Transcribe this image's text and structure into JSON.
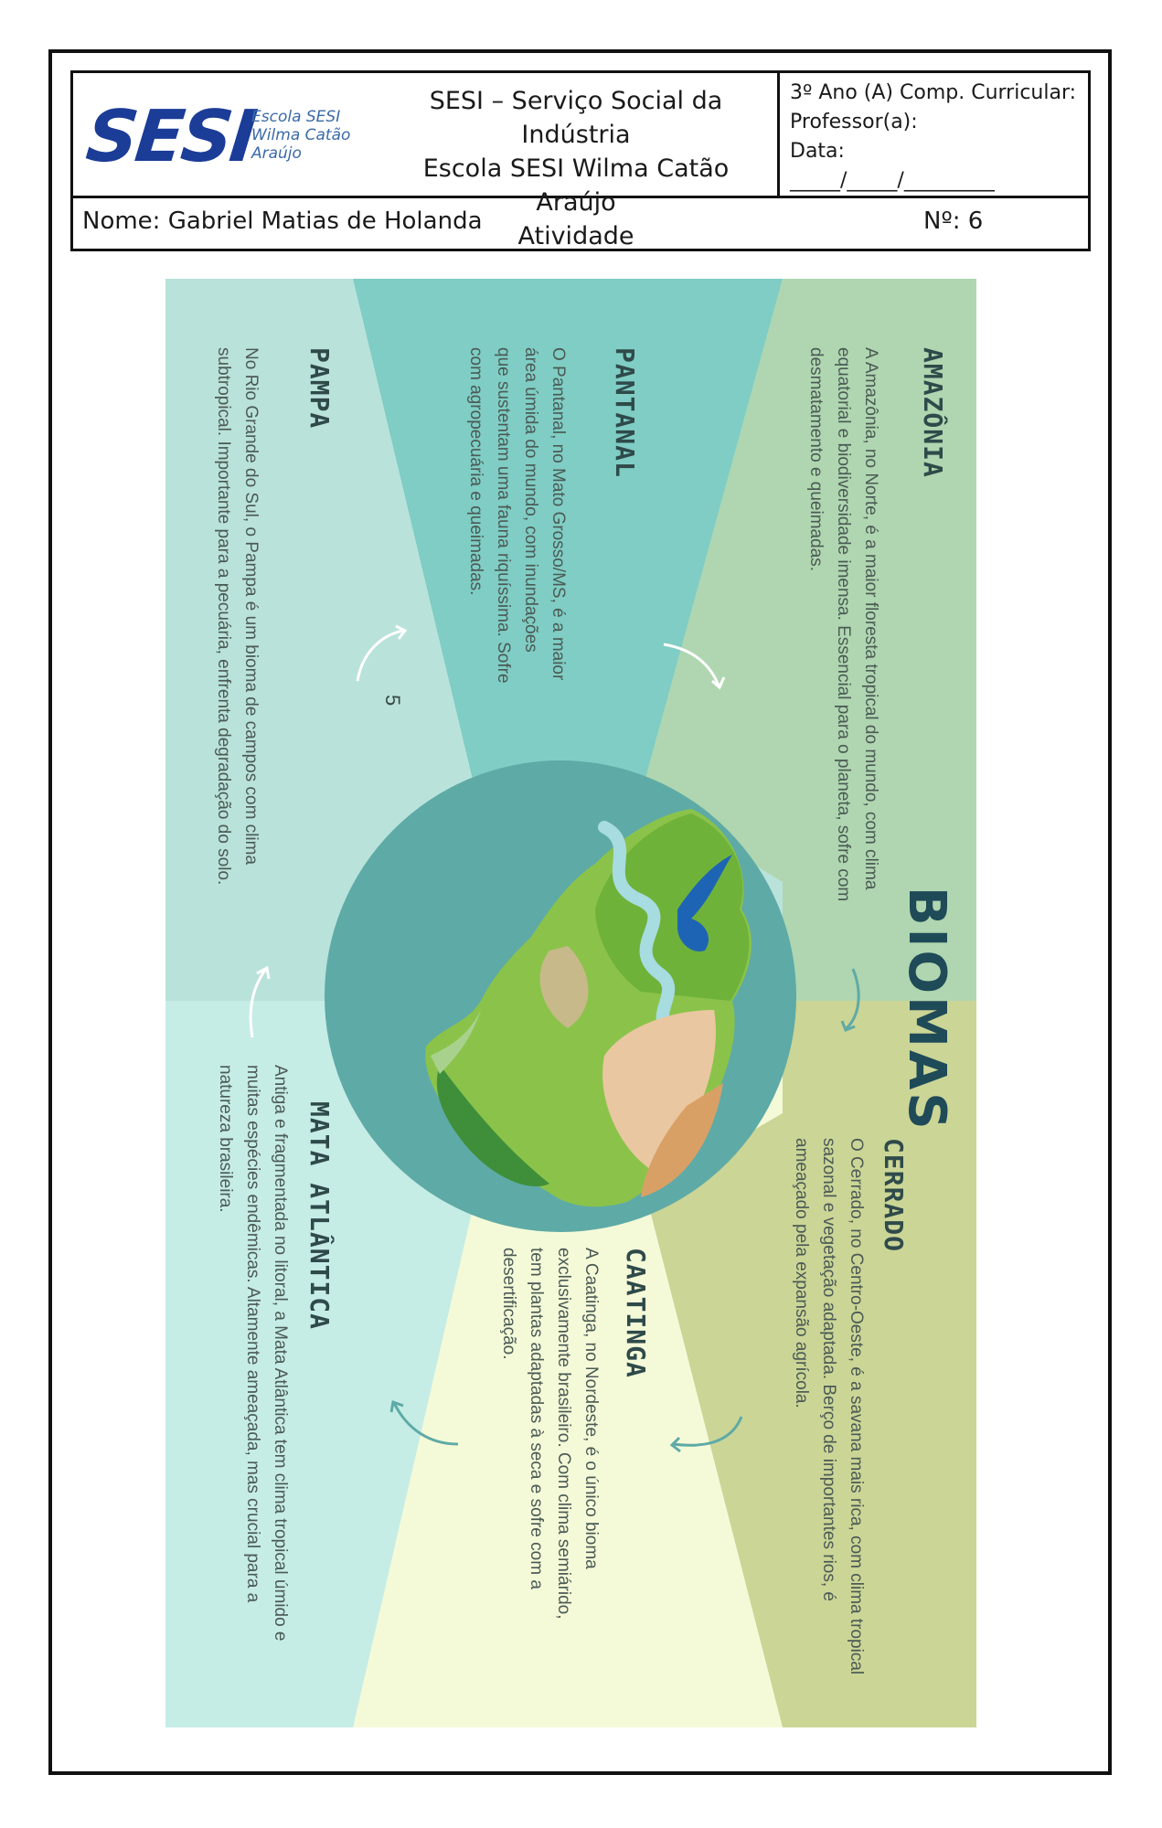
{
  "header": {
    "logo_text": "SESI",
    "logo_sub": [
      "Escola SESI",
      "Wilma Catão",
      "Araújo"
    ],
    "center_lines": [
      "SESI – Serviço Social da Indústria",
      "Escola SESI Wilma Catão Araújo",
      "Atividade"
    ],
    "right_lines": [
      " 3º Ano (A) Comp. Curricular:",
      "Professor(a):",
      " Data:",
      "_____/_____/_________"
    ],
    "name": "Nome: Gabriel Matias de Holanda",
    "number": "Nº: 6"
  },
  "poster": {
    "title": "BIOMAS",
    "page_number": "5",
    "biomes": [
      {
        "name": "AMAZÔNIA",
        "text": "A Amazônia, no Norte, é a maior floresta tropical do mundo, com clima equatorial e biodiversidade imensa. Essencial para o planeta, sofre com desmatamento e queimadas.",
        "color": "#afd6b0"
      },
      {
        "name": "PANTANAL",
        "text": "O Pantanal, no Mato Grosso/MS, é a maior área úmida do mundo, com inundações que sustentam uma fauna riquíssima. Sofre com agropecuária e queimadas.",
        "color": "#7fcdc4"
      },
      {
        "name": "PAMPA",
        "text": "No Rio Grande do Sul, o Pampa é um bioma de campos com clima subtropical. Importante para a pecuária, enfrenta degradação do solo.",
        "color": "#b9e2da"
      },
      {
        "name": "MATA ATLÂNTICA",
        "text": "Antiga e fragmentada no litoral, a Mata Atlântica tem clima tropical úmido e muitas espécies endêmicas. Altamente ameaçada, mas crucial para a natureza brasileira.",
        "color": "#c6ece6"
      },
      {
        "name": "CAATINGA",
        "text": "A Caatinga, no Nordeste, é o único bioma exclusivamente brasileiro. Com clima semiárido, tem plantas adaptadas à seca e sofre com a desertificação.",
        "color": "#f4fad8"
      },
      {
        "name": "CERRADO",
        "text": "O Cerrado, no Centro-Oeste, é a savana mais rica, com clima tropical sazonal e vegetação adaptada. Berço de importantes rios, é ameaçado pela expansão agrícola.",
        "color": "#cbd596"
      }
    ],
    "circle_color": "#5eaaa6"
  }
}
